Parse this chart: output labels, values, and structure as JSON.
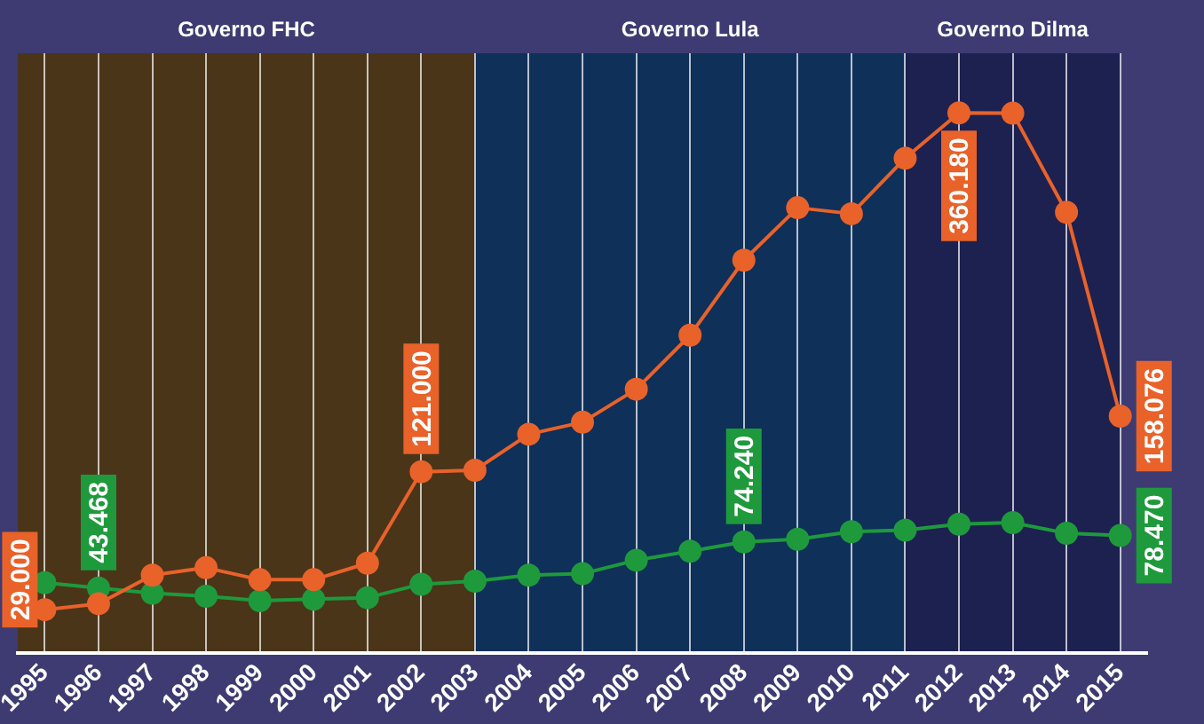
{
  "chart_data": {
    "type": "line",
    "categories": [
      "1995",
      "1996",
      "1997",
      "1998",
      "1999",
      "2000",
      "2001",
      "2002",
      "2003",
      "2004",
      "2005",
      "2006",
      "2007",
      "2008",
      "2009",
      "2010",
      "2011",
      "2012",
      "2013",
      "2014",
      "2015"
    ],
    "series": [
      {
        "color": "#e8622a",
        "values": [
          29000,
          33000,
          52000,
          57000,
          49000,
          49000,
          60000,
          121000,
          122000,
          146000,
          154000,
          176000,
          212000,
          262000,
          297000,
          293000,
          330000,
          360180,
          360000,
          294000,
          158076
        ],
        "value_labels": [
          "29.000",
          null,
          null,
          null,
          null,
          null,
          null,
          "121.000",
          null,
          null,
          null,
          null,
          null,
          null,
          null,
          null,
          null,
          "360.180",
          null,
          null,
          "158.076"
        ]
      },
      {
        "color": "#1e9a3c",
        "values": [
          47000,
          43468,
          40000,
          38000,
          35000,
          36000,
          37000,
          46000,
          48000,
          52000,
          53000,
          62000,
          68000,
          74240,
          76000,
          81000,
          82000,
          86000,
          87000,
          80000,
          78470
        ],
        "value_labels": [
          null,
          "43.468",
          null,
          null,
          null,
          null,
          null,
          null,
          null,
          null,
          null,
          null,
          null,
          "74.240",
          null,
          null,
          null,
          null,
          null,
          null,
          "78.470"
        ]
      }
    ],
    "bands": [
      {
        "axis": "x",
        "from": "1995",
        "to": "2003",
        "label": "Governo FHC",
        "color": "#4a3519"
      },
      {
        "axis": "x",
        "from": "2003",
        "to": "2011",
        "label": "Governo Lula",
        "color": "#0f3059"
      },
      {
        "axis": "x",
        "from": "2011",
        "to": "2015",
        "label": "Governo Dilma",
        "color": "#1d2150"
      }
    ],
    "grid": "x",
    "marker": "circle",
    "legend": false
  }
}
